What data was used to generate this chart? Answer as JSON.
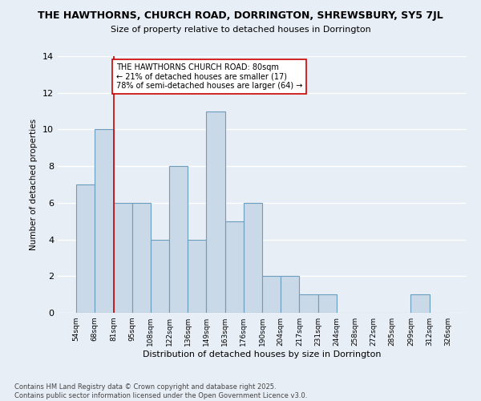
{
  "title": "THE HAWTHORNS, CHURCH ROAD, DORRINGTON, SHREWSBURY, SY5 7JL",
  "subtitle": "Size of property relative to detached houses in Dorrington",
  "xlabel": "Distribution of detached houses by size in Dorrington",
  "ylabel": "Number of detached properties",
  "footnote1": "Contains HM Land Registry data © Crown copyright and database right 2025.",
  "footnote2": "Contains public sector information licensed under the Open Government Licence v3.0.",
  "bin_labels": [
    "54sqm",
    "68sqm",
    "81sqm",
    "95sqm",
    "108sqm",
    "122sqm",
    "136sqm",
    "149sqm",
    "163sqm",
    "176sqm",
    "190sqm",
    "204sqm",
    "217sqm",
    "231sqm",
    "244sqm",
    "258sqm",
    "272sqm",
    "285sqm",
    "299sqm",
    "312sqm",
    "326sqm"
  ],
  "bar_values": [
    7,
    10,
    6,
    6,
    4,
    8,
    4,
    11,
    5,
    6,
    2,
    2,
    1,
    1,
    0,
    0,
    0,
    0,
    1,
    0
  ],
  "bar_color": "#c9d9e8",
  "bar_edge_color": "#6b9dbf",
  "subject_line_color": "#cc0000",
  "annotation_text": "THE HAWTHORNS CHURCH ROAD: 80sqm\n← 21% of detached houses are smaller (17)\n78% of semi-detached houses are larger (64) →",
  "annotation_box_color": "#ffffff",
  "annotation_box_edge_color": "#cc0000",
  "ylim": [
    0,
    14
  ],
  "yticks": [
    0,
    2,
    4,
    6,
    8,
    10,
    12,
    14
  ],
  "bg_color": "#e8eef5",
  "axes_bg_color": "#e8eef5",
  "grid_color": "#ffffff"
}
